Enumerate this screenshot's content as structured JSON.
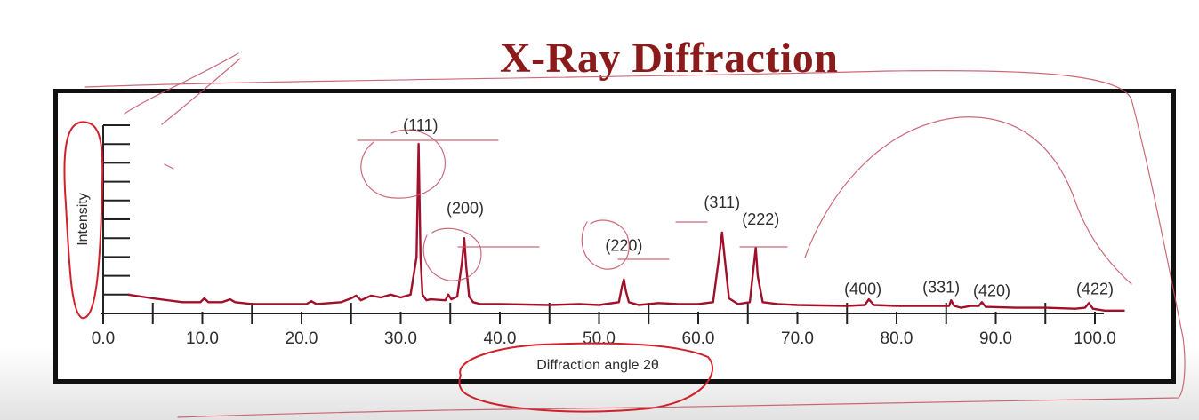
{
  "slide": {
    "title": "X-Ray Diffraction"
  },
  "chart_data": {
    "type": "line",
    "title": "",
    "xlabel": "Diffraction angle 2θ",
    "ylabel": "Intensity",
    "xlim": [
      0,
      100
    ],
    "ylim": [
      0,
      100
    ],
    "x_ticks": [
      "0.0",
      "10.0",
      "20.0",
      "30.0",
      "40.0",
      "50.0",
      "60.0",
      "70.0",
      "80.0",
      "90.0",
      "100.0"
    ],
    "grid": false,
    "series": [
      {
        "color": "#a0102a",
        "x": [
          2.5,
          5,
          8,
          9.8,
          10.2,
          10.6,
          12,
          12.8,
          13.3,
          15,
          18,
          20.5,
          21,
          21.5,
          24,
          25,
          25.5,
          26,
          27,
          28,
          29,
          30,
          31,
          31.6,
          31.8,
          32.0,
          32.2,
          32.6,
          33,
          34.5,
          34.8,
          35.1,
          35.7,
          36.2,
          36.4,
          36.6,
          36.9,
          37.3,
          38,
          40,
          45,
          48,
          50,
          52,
          52.3,
          52.5,
          52.7,
          53,
          54,
          56,
          58,
          60,
          61.5,
          62.1,
          62.4,
          62.7,
          63.1,
          64,
          65.2,
          65.6,
          65.8,
          66.0,
          66.5,
          68,
          70,
          75,
          76.8,
          77.2,
          77.7,
          80,
          83,
          85.3,
          85.5,
          85.8,
          86.5,
          87.5,
          88.3,
          88.6,
          89,
          92,
          95,
          98,
          99,
          99.4,
          99.8,
          101,
          103
        ],
        "y": [
          10,
          8,
          6,
          6,
          8,
          6,
          6,
          7.5,
          6,
          5,
          5,
          5,
          6.5,
          5,
          6,
          8,
          9.5,
          7,
          9.5,
          8.5,
          10,
          8.5,
          10,
          30,
          90,
          30,
          10,
          7,
          7.5,
          7,
          10,
          7.5,
          9,
          28,
          40,
          25,
          9,
          6,
          5,
          5,
          4.5,
          5,
          4.5,
          6,
          14,
          18,
          12,
          6,
          4.5,
          5.5,
          5,
          5,
          6,
          30,
          43,
          28,
          8,
          5,
          6,
          25,
          35,
          20,
          6,
          5,
          4.5,
          4,
          4.5,
          7.5,
          4.5,
          4,
          4,
          4,
          7,
          4,
          3,
          4,
          4,
          6,
          3.5,
          3,
          3,
          2.5,
          3,
          5.5,
          2.5,
          1.5,
          1.5
        ]
      }
    ],
    "annotations": [
      {
        "label": "(111)",
        "x": 32.0,
        "y": 100
      },
      {
        "label": "(200)",
        "x": 36.5,
        "y": 56
      },
      {
        "label": "(220)",
        "x": 52.5,
        "y": 36
      },
      {
        "label": "(311)",
        "x": 62.4,
        "y": 59
      },
      {
        "label": "(222)",
        "x": 66.3,
        "y": 50
      },
      {
        "label": "(400)",
        "x": 76.6,
        "y": 13
      },
      {
        "label": "(331)",
        "x": 84.5,
        "y": 14
      },
      {
        "label": "(420)",
        "x": 89.6,
        "y": 12
      },
      {
        "label": "(422)",
        "x": 100.0,
        "y": 13
      }
    ]
  }
}
